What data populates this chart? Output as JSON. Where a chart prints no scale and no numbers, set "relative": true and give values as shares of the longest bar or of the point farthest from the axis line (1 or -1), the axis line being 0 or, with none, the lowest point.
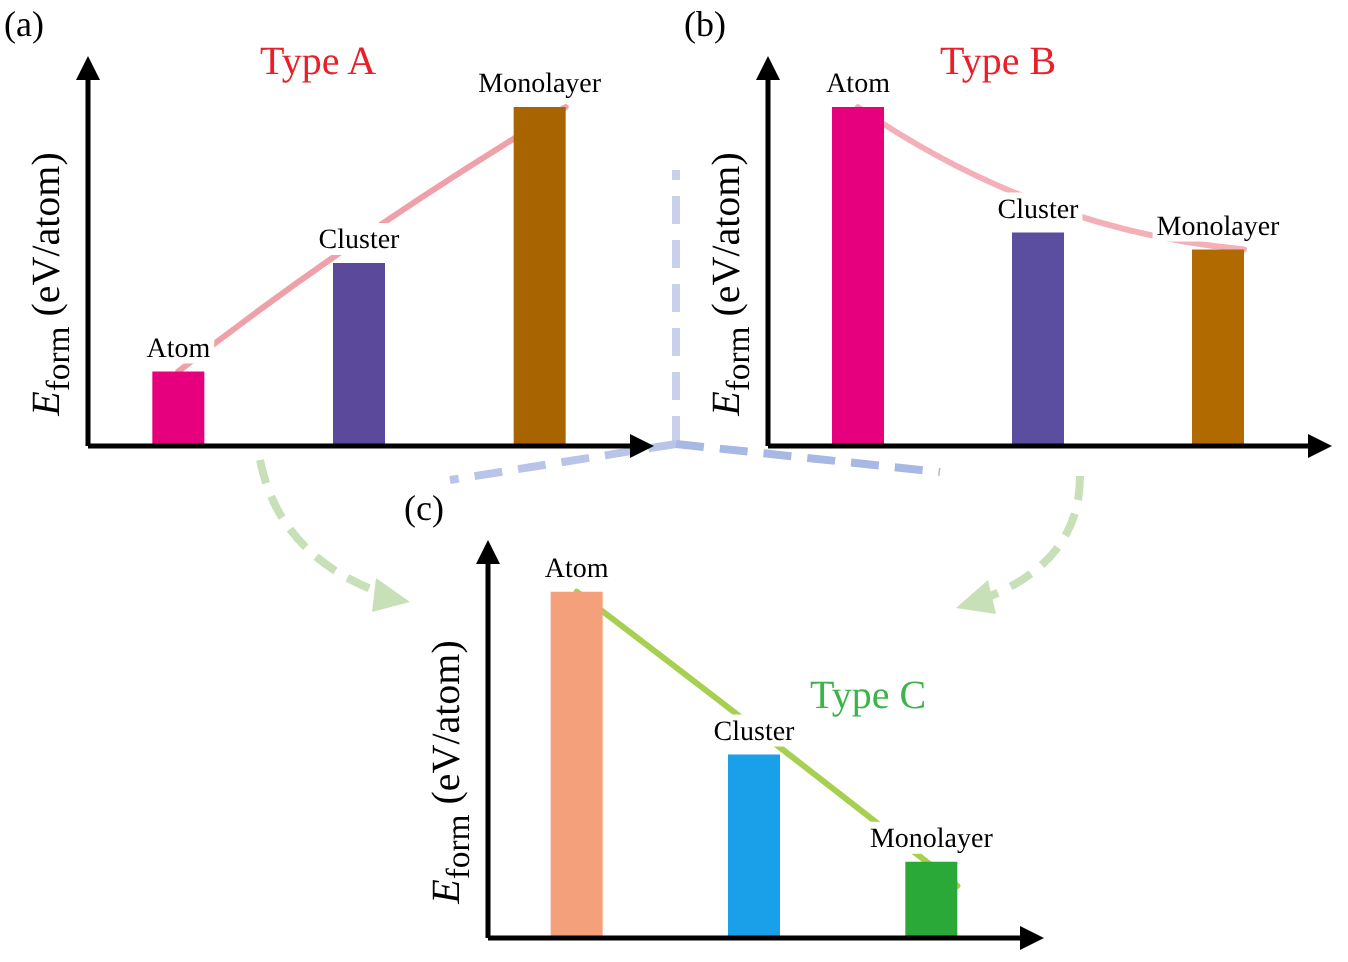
{
  "chart_data": [
    {
      "type": "bar",
      "title": "Type A",
      "ylabel": "E$_{form}$ (eV/atom)",
      "relative": true,
      "tick_labels": false,
      "legend": false,
      "categories": [
        null,
        null,
        null
      ],
      "colors": [
        "#e6007e",
        "#5b4a9c",
        "#a86400"
      ],
      "values": [
        0.22,
        0.54,
        1
      ],
      "annotations": [
        "(a)",
        {
          "text": "Atom",
          "y": 0.22
        },
        {
          "text": "Cluster",
          "y": 0.54
        },
        {
          "text": "Monolayer",
          "y": 1
        }
      ]
    },
    {
      "type": "bar",
      "title": "Type B",
      "ylabel": "E$_{form}$ (eV/atom)",
      "relative": true,
      "tick_labels": false,
      "legend": false,
      "categories": [
        null,
        null,
        null
      ],
      "colors": [
        "#e6007e",
        "#5b4ea0",
        "#b06a00"
      ],
      "values": [
        1,
        0.63,
        0.58
      ],
      "annotations": [
        "(b)",
        {
          "text": "Atom",
          "y": 1
        },
        {
          "text": "Cluster",
          "y": 0.63
        },
        {
          "text": "Monolayer",
          "y": 0.58
        }
      ]
    },
    {
      "type": "bar",
      "title": "Type C",
      "ylabel": "E$_{form}$ (eV/atom)",
      "relative": true,
      "tick_labels": false,
      "legend": false,
      "categories": [
        null,
        null,
        null
      ],
      "colors": [
        "#f4a07a",
        "#1aa0e8",
        "#2aa838"
      ],
      "values": [
        1,
        0.53,
        0.22
      ],
      "annotations": [
        "(c)",
        {
          "text": "Atom",
          "y": 1
        },
        {
          "text": "Cluster",
          "y": 0.53
        },
        {
          "text": "Monolayer",
          "y": 0.22
        }
      ]
    }
  ]
}
